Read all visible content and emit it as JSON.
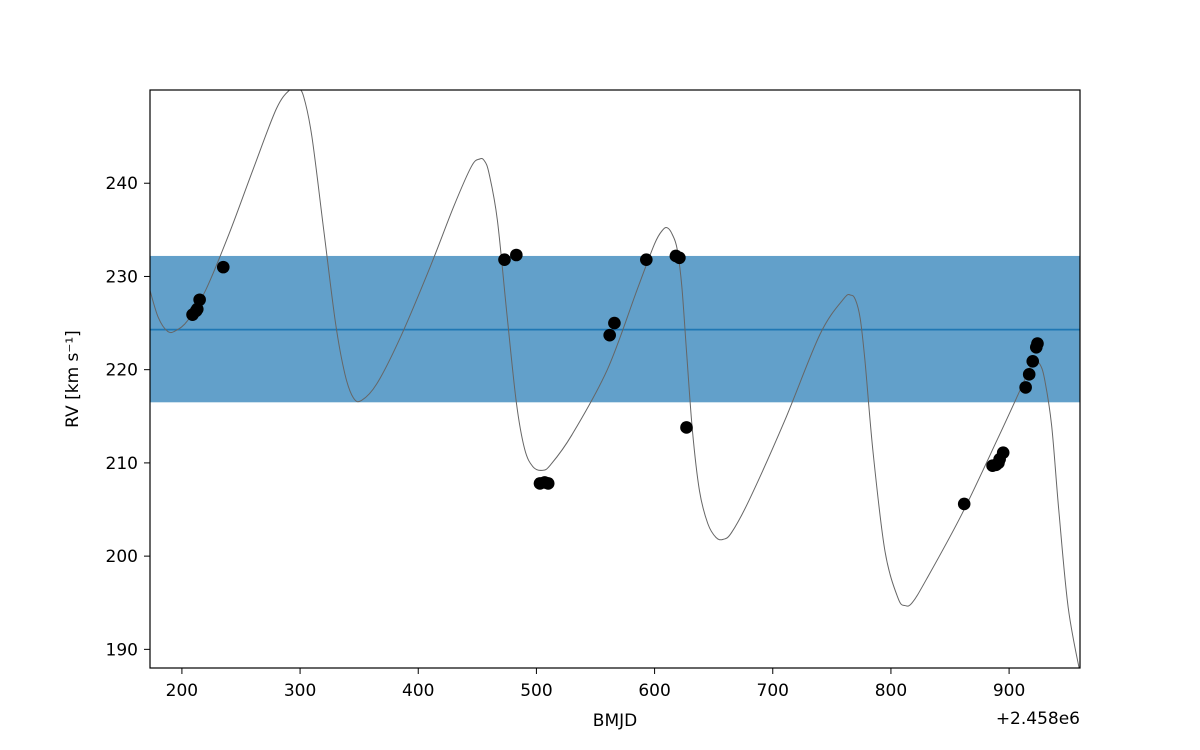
{
  "chart_data": {
    "type": "scatter",
    "xlabel": "BMJD",
    "ylabel": "RV [km s⁻¹]",
    "x_offset_label": "+2.458e6",
    "xlim": [
      173,
      960
    ],
    "ylim": [
      188.0,
      250.0
    ],
    "x_ticks": [
      200,
      300,
      400,
      500,
      600,
      700,
      800,
      900
    ],
    "y_ticks": [
      190,
      200,
      210,
      220,
      230,
      240
    ],
    "band": {
      "center": 224.3,
      "low": 216.5,
      "high": 232.2,
      "color": "#1f77b4"
    },
    "series": [
      {
        "kind": "points",
        "color": "#000000",
        "x": [
          209,
          212,
          213,
          215,
          235,
          473,
          483,
          503,
          507,
          510,
          562,
          566,
          593,
          618,
          621,
          627,
          862,
          886,
          889,
          891,
          892,
          895,
          914,
          917,
          920,
          923,
          924
        ],
        "y": [
          225.9,
          226.3,
          226.5,
          227.5,
          231.0,
          231.8,
          232.3,
          207.8,
          207.9,
          207.8,
          223.7,
          225.0,
          231.8,
          232.2,
          232.0,
          213.8,
          205.6,
          209.7,
          209.8,
          210.0,
          210.4,
          211.1,
          218.1,
          219.5,
          220.9,
          222.4,
          222.8
        ]
      },
      {
        "kind": "model",
        "color": "#666666",
        "x": [
          173,
          180,
          188,
          195,
          205,
          220,
          240,
          260,
          280,
          292,
          298,
          303,
          310,
          320,
          330,
          338,
          345,
          352,
          365,
          385,
          410,
          430,
          445,
          452,
          456,
          460,
          467,
          475,
          483,
          490,
          497,
          505,
          512,
          530,
          560,
          585,
          600,
          607,
          611,
          615,
          619,
          623,
          627,
          632,
          638,
          645,
          652,
          658,
          665,
          680,
          710,
          740,
          760,
          766,
          770,
          774,
          778,
          785,
          795,
          806,
          812,
          818,
          830,
          860,
          890,
          910,
          918,
          922,
          926,
          930,
          936,
          942,
          950,
          960
        ],
        "y": [
          228.5,
          225.6,
          224.1,
          224.2,
          225.3,
          228.5,
          234.6,
          241.4,
          248.0,
          250.1,
          250.2,
          249.3,
          245.0,
          235.0,
          225.0,
          219.5,
          217.0,
          216.7,
          218.5,
          223.5,
          231.0,
          237.5,
          241.8,
          242.6,
          242.4,
          241.0,
          236.0,
          226.0,
          216.5,
          211.5,
          209.6,
          209.2,
          209.8,
          213.0,
          220.0,
          228.5,
          233.5,
          235.0,
          235.2,
          234.5,
          233.0,
          229.0,
          222.0,
          213.5,
          207.0,
          203.5,
          202.0,
          201.8,
          202.5,
          206.0,
          214.5,
          223.8,
          227.6,
          228.0,
          227.5,
          225.5,
          221.0,
          211.0,
          200.5,
          195.5,
          194.7,
          195.0,
          197.5,
          204.5,
          212.5,
          218.0,
          220.3,
          220.8,
          220.6,
          219.0,
          214.0,
          205.0,
          194.5,
          187.5
        ]
      }
    ]
  }
}
